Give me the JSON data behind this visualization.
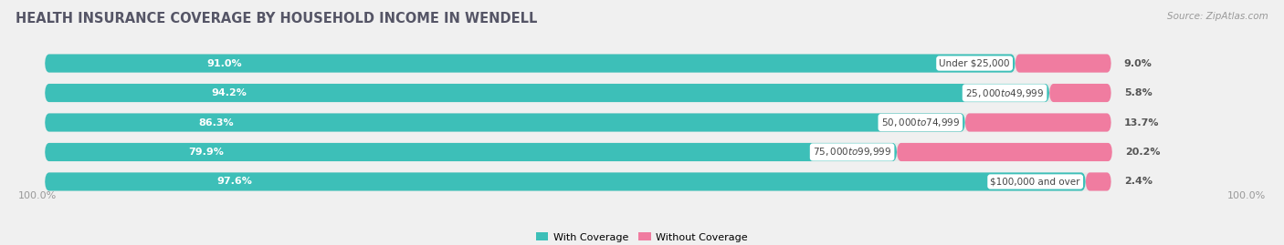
{
  "title": "HEALTH INSURANCE COVERAGE BY HOUSEHOLD INCOME IN WENDELL",
  "source": "Source: ZipAtlas.com",
  "categories": [
    "Under $25,000",
    "$25,000 to $49,999",
    "$50,000 to $74,999",
    "$75,000 to $99,999",
    "$100,000 and over"
  ],
  "with_coverage": [
    91.0,
    94.2,
    86.3,
    79.9,
    97.6
  ],
  "without_coverage": [
    9.0,
    5.8,
    13.7,
    20.2,
    2.4
  ],
  "color_with": "#3dbfb8",
  "color_without": "#f07ca0",
  "bg_color": "#f0f0f0",
  "bar_bg_color": "#e8e8e8",
  "title_fontsize": 10.5,
  "label_fontsize": 8,
  "tick_fontsize": 8,
  "legend_fontsize": 8,
  "source_fontsize": 7.5,
  "bar_height": 0.62,
  "total": 100.0,
  "xlim_left": -3,
  "xlim_right": 115
}
